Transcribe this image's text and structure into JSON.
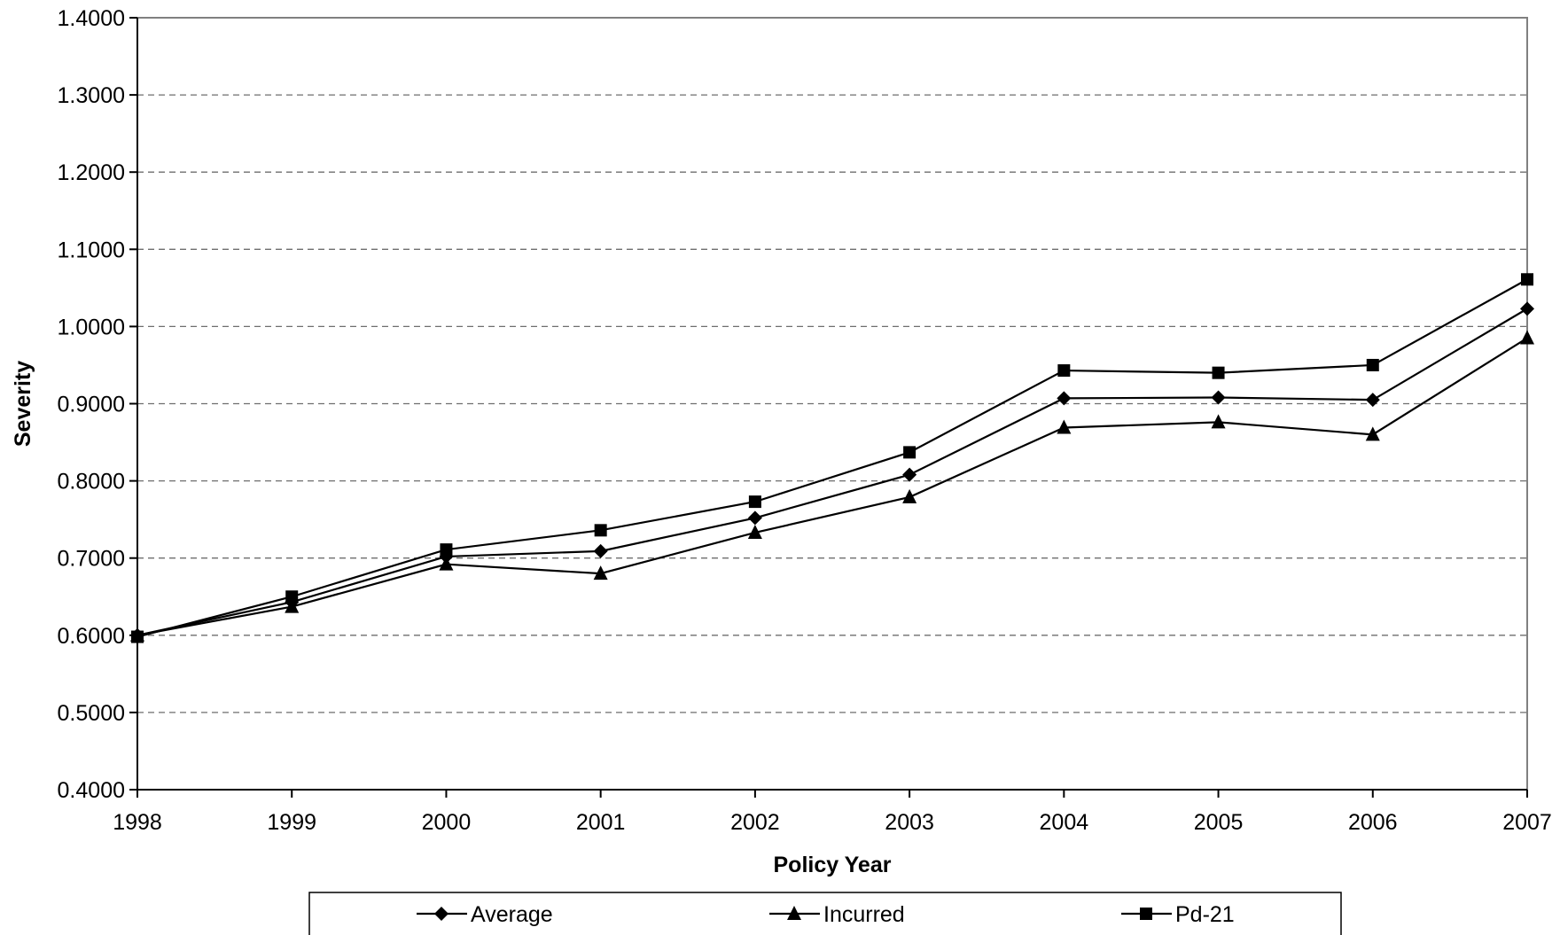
{
  "chart_data": {
    "type": "line",
    "title": "",
    "xlabel": "Policy Year",
    "ylabel": "Severity",
    "x": [
      "1998",
      "1999",
      "2000",
      "2001",
      "2002",
      "2003",
      "2004",
      "2005",
      "2006",
      "2007"
    ],
    "ylim": [
      0.4,
      1.4
    ],
    "yticks": [
      "0.4000",
      "0.5000",
      "0.6000",
      "0.7000",
      "0.8000",
      "0.9000",
      "1.0000",
      "1.1000",
      "1.2000",
      "1.3000",
      "1.4000"
    ],
    "grid": "horizontal dashed",
    "legend_position": "bottom",
    "series": [
      {
        "name": "Average",
        "marker": "diamond",
        "values": [
          0.6,
          0.643,
          0.702,
          0.709,
          0.752,
          0.808,
          0.907,
          0.908,
          0.905,
          1.023
        ]
      },
      {
        "name": "Incurred",
        "marker": "triangle",
        "values": [
          0.6,
          0.637,
          0.692,
          0.68,
          0.733,
          0.779,
          0.869,
          0.876,
          0.86,
          0.985
        ]
      },
      {
        "name": "Pd-21",
        "marker": "square",
        "values": [
          0.598,
          0.65,
          0.711,
          0.736,
          0.773,
          0.837,
          0.943,
          0.94,
          0.95,
          1.061
        ]
      }
    ],
    "line_color": "#000000"
  }
}
